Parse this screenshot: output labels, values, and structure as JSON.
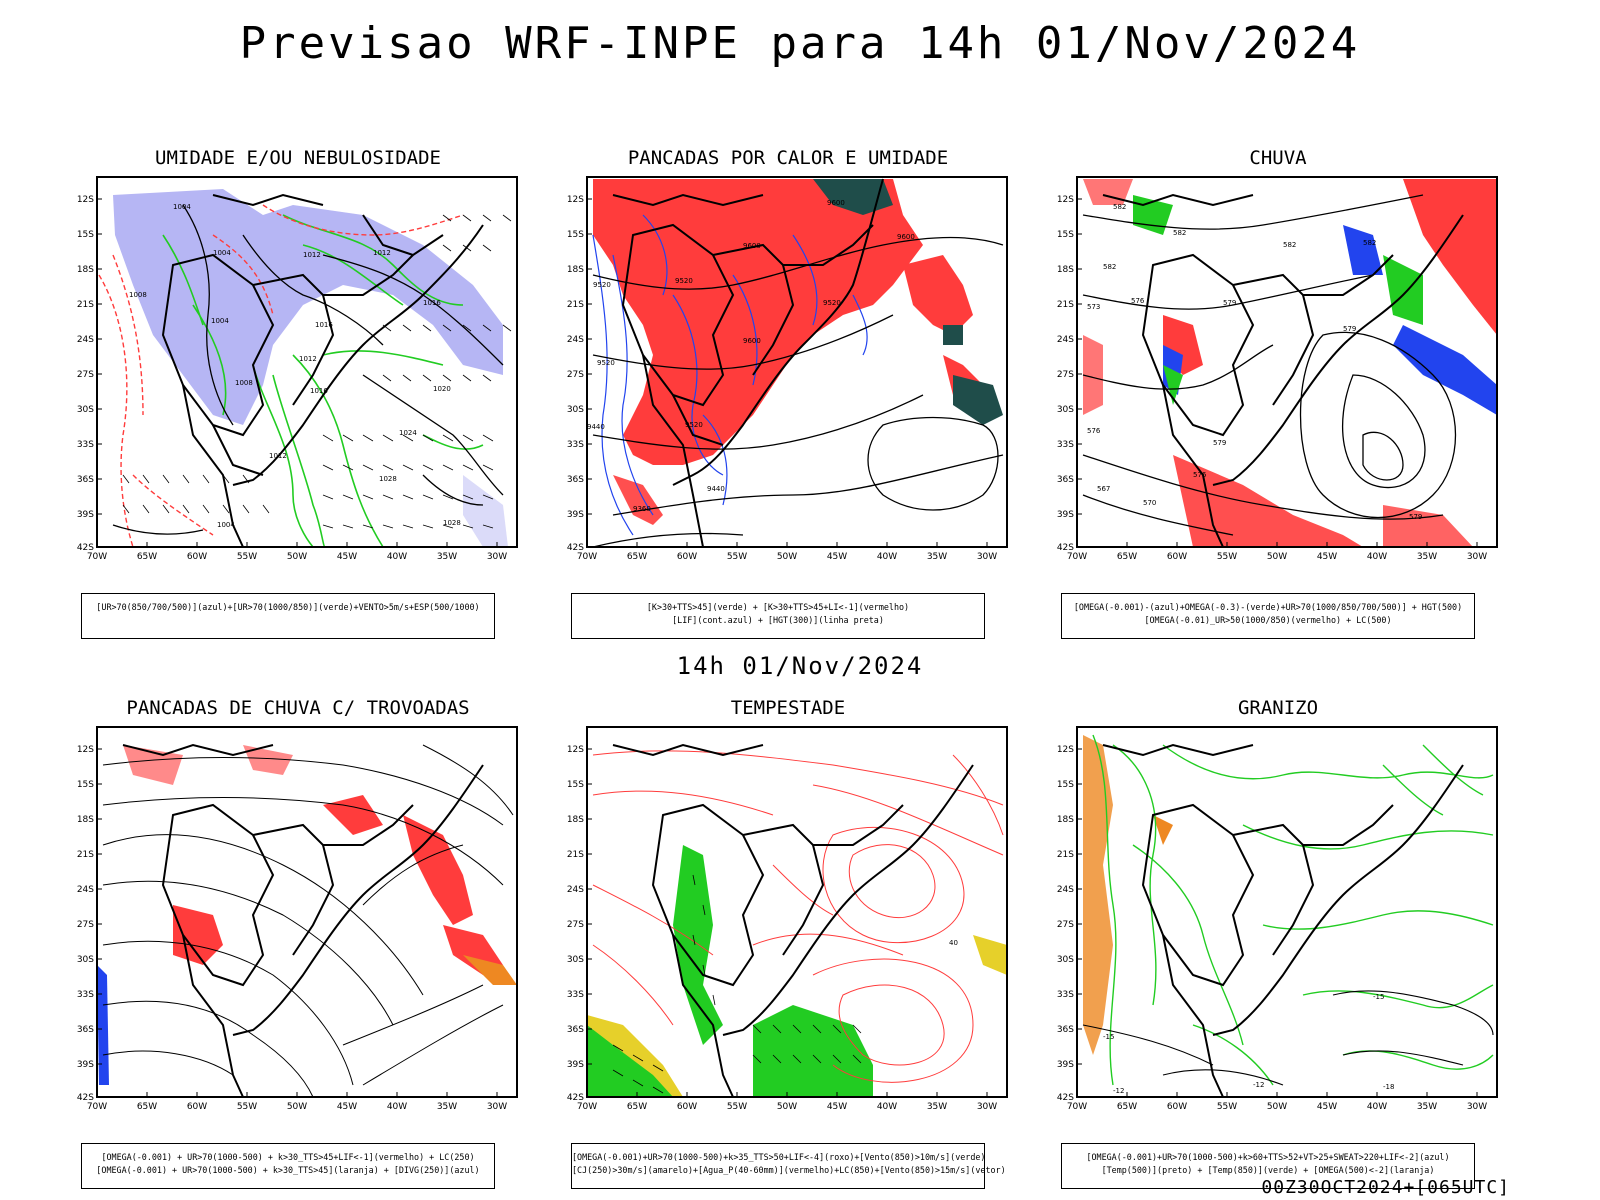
{
  "title": "Previsao WRF-INPE  para 14h 01/Nov/2024",
  "mid_date": "14h 01/Nov/2024",
  "footer": "00Z30OCT2024+[065UTC]",
  "lat_ticks": [
    "12S",
    "15S",
    "18S",
    "21S",
    "24S",
    "27S",
    "30S",
    "33S",
    "36S",
    "39S",
    "42S"
  ],
  "lon_ticks": [
    "70W",
    "65W",
    "60W",
    "55W",
    "50W",
    "45W",
    "40W",
    "35W",
    "30W"
  ],
  "panels": [
    {
      "title": "UMIDADE E/OU NEBULOSIDADE",
      "legend": [
        "[UR>70(850/700/500)](azul)+[UR>70(1000/850)](verde)+VENTO>5m/s+ESP(500/1000)"
      ],
      "contour_labels": [
        "1004",
        "1004",
        "1012",
        "1012",
        "1008",
        "1016",
        "1004",
        "1016",
        "1012",
        "1008",
        "1016",
        "1020",
        "1024",
        "1028",
        "1028",
        "1004",
        "1012"
      ]
    },
    {
      "title": "PANCADAS POR CALOR E UMIDADE",
      "legend": [
        "[K>30+TTS>45](verde) + [K>30+TTS>45+LI<-1](vermelho)",
        "[LIF](cont.azul) + [HGT(300)](linha preta)"
      ],
      "contour_labels": [
        "9600",
        "9600",
        "9600",
        "9520",
        "9520",
        "9520",
        "9600",
        "9520",
        "9440",
        "9440",
        "9360",
        "9520"
      ]
    },
    {
      "title": "CHUVA",
      "legend": [
        "[OMEGA(-0.001)-(azul)+OMEGA(-0.3)-(verde)+UR>70(1000/850/700/500)] + HGT(500)",
        "[OMEGA(-0.01)_UR>50(1000/850)(vermelho) + LC(500)"
      ],
      "contour_labels": [
        "582",
        "582",
        "582",
        "582",
        "582",
        "579",
        "576",
        "573",
        "579",
        "579",
        "576",
        "576",
        "567",
        "570",
        "579"
      ]
    },
    {
      "title": "PANCADAS DE CHUVA C/ TROVOADAS",
      "legend": [
        "[OMEGA(-0.001) + UR>70(1000-500) + k>30_TTS>45+LIF<-1](vermelho) + LC(250)",
        "[OMEGA(-0.001) + UR>70(1000-500) + k>30_TTS>45](laranja) + [DIVG(250)](azul)"
      ],
      "contour_labels": []
    },
    {
      "title": "TEMPESTADE",
      "legend": [
        "[OMEGA(-0.001)+UR>70(1000-500)+k>35_TTS>50+LIF<-4](roxo)+[Vento(850)>10m/s](verde)",
        "[CJ(250)>30m/s](amarelo)+[Agua_P(40-60mm)](vermelho)+LC(850)+[Vento(850)>15m/s](vetor)"
      ],
      "contour_labels": [
        "40"
      ]
    },
    {
      "title": "GRANIZO",
      "legend": [
        "[OMEGA(-0.001)+UR>70(1000-500)+k>60+TTS>52+VT>25+SWEAT>220+LIF<-2](azul)",
        "[Temp(500)](preto) + [Temp(850)](verde) + [OMEGA(500)<-2](laranja)"
      ],
      "contour_labels": [
        "-15",
        "-18",
        "-15",
        "-12",
        "-12"
      ]
    }
  ],
  "colors": {
    "red": "#ff3c3c",
    "green": "#22cc22",
    "blue": "#2244ee",
    "lavender": "#a9a9f2",
    "teal": "#1f4d4a",
    "orange": "#ee8822",
    "yellow": "#e6d02a",
    "black": "#000000"
  }
}
